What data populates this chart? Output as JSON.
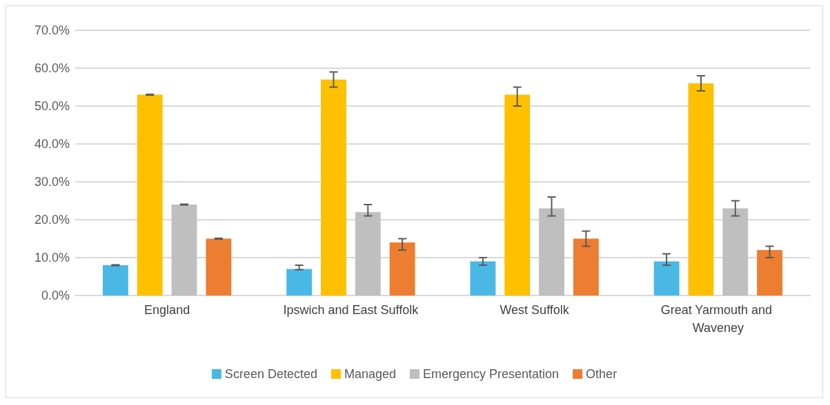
{
  "chart_data": {
    "type": "bar",
    "categories": [
      "England",
      "Ipswich and East Suffolk",
      "West Suffolk",
      "Great Yarmouth and Waveney"
    ],
    "series": [
      {
        "name": "Screen Detected",
        "color": "#4ab8e4",
        "values": [
          8,
          7,
          9,
          9
        ],
        "errors": [
          [
            7.9,
            8.1
          ],
          [
            6.8,
            8
          ],
          [
            8,
            10
          ],
          [
            8,
            11
          ]
        ]
      },
      {
        "name": "Managed",
        "color": "#ffc000",
        "values": [
          53,
          57,
          53,
          56
        ],
        "errors": [
          [
            52.9,
            53.1
          ],
          [
            55,
            59
          ],
          [
            50,
            55
          ],
          [
            54,
            58
          ]
        ]
      },
      {
        "name": "Emergency Presentation",
        "color": "#bfbfbf",
        "values": [
          24,
          22,
          23,
          23
        ],
        "errors": [
          [
            23.9,
            24.1
          ],
          [
            21,
            24
          ],
          [
            21,
            26
          ],
          [
            21,
            25
          ]
        ]
      },
      {
        "name": "Other",
        "color": "#ed7d31",
        "values": [
          15,
          14,
          15,
          12
        ],
        "errors": [
          [
            14.9,
            15.1
          ],
          [
            12,
            15
          ],
          [
            13,
            17
          ],
          [
            10,
            13
          ]
        ]
      }
    ],
    "ylim": [
      0,
      70
    ],
    "yticks": [
      {
        "value": 0,
        "label": "0.0%"
      },
      {
        "value": 10,
        "label": "10.0%"
      },
      {
        "value": 20,
        "label": "20.0%"
      },
      {
        "value": 30,
        "label": "30.0%"
      },
      {
        "value": 40,
        "label": "40.0%"
      },
      {
        "value": 50,
        "label": "50.0%"
      },
      {
        "value": 60,
        "label": "60.0%"
      },
      {
        "value": 70,
        "label": "70.0%"
      }
    ],
    "grid": "y",
    "legend": "bottom"
  }
}
